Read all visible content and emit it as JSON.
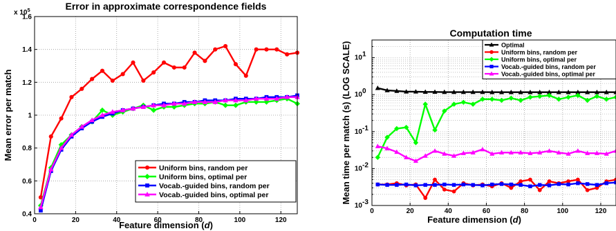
{
  "chart_data": [
    {
      "type": "line",
      "title": "Error in approximate correspondence fields",
      "xlabel": "Feature dimension (d)",
      "xlabel_main": "Feature dimension (",
      "xlabel_var": "d",
      "xlabel_close": ")",
      "ylabel": "Mean error per match",
      "y_multiplier": "x 10",
      "y_multiplier_exp": "5",
      "xlim": [
        0,
        128
      ],
      "ylim": [
        0.4,
        1.6
      ],
      "yscale": "linear",
      "xticks": [
        0,
        20,
        40,
        60,
        80,
        100,
        120
      ],
      "xtick_labels": [
        "0",
        "20",
        "40",
        "60",
        "80",
        "100",
        "120"
      ],
      "yticks": [
        0.4,
        0.6,
        0.8,
        1.0,
        1.2,
        1.4,
        1.6
      ],
      "ytick_labels": [
        "0.4",
        "0.6",
        "0.8",
        "1",
        "1.2",
        "1.4",
        "1.6"
      ],
      "grid": true,
      "legend_position": "bottom-right",
      "x": [
        3,
        8,
        13,
        18,
        23,
        28,
        33,
        38,
        43,
        48,
        53,
        58,
        63,
        68,
        73,
        78,
        83,
        88,
        93,
        98,
        103,
        108,
        113,
        118,
        123,
        128
      ],
      "series": [
        {
          "name": "Uniform bins, random per",
          "color": "#ff0000",
          "marker": "circle",
          "values": [
            0.5,
            0.87,
            0.98,
            1.11,
            1.16,
            1.22,
            1.27,
            1.21,
            1.25,
            1.32,
            1.21,
            1.26,
            1.32,
            1.29,
            1.29,
            1.38,
            1.33,
            1.4,
            1.42,
            1.31,
            1.24,
            1.4,
            1.4,
            1.4,
            1.37,
            1.38
          ]
        },
        {
          "name": "Uniform bins, optimal per",
          "color": "#00ff00",
          "marker": "diamond",
          "values": [
            0.45,
            0.68,
            0.82,
            0.88,
            0.93,
            0.96,
            1.03,
            1.0,
            1.02,
            1.04,
            1.06,
            1.03,
            1.05,
            1.05,
            1.06,
            1.07,
            1.07,
            1.08,
            1.06,
            1.06,
            1.08,
            1.08,
            1.08,
            1.09,
            1.1,
            1.07
          ]
        },
        {
          "name": "Vocab.-guided bins, random per",
          "color": "#0000ff",
          "marker": "square",
          "values": [
            0.42,
            0.66,
            0.79,
            0.87,
            0.92,
            0.96,
            0.99,
            1.01,
            1.03,
            1.04,
            1.05,
            1.06,
            1.07,
            1.07,
            1.08,
            1.08,
            1.09,
            1.09,
            1.09,
            1.1,
            1.1,
            1.1,
            1.11,
            1.11,
            1.11,
            1.12
          ]
        },
        {
          "name": "Vocab.-guided bins, optimal per",
          "color": "#ff00ff",
          "marker": "triangle",
          "values": [
            0.44,
            0.67,
            0.8,
            0.88,
            0.93,
            0.97,
            1.0,
            1.02,
            1.03,
            1.04,
            1.05,
            1.06,
            1.06,
            1.07,
            1.07,
            1.08,
            1.08,
            1.08,
            1.09,
            1.09,
            1.09,
            1.1,
            1.1,
            1.1,
            1.11,
            1.11
          ]
        }
      ]
    },
    {
      "type": "line",
      "title": "Computation time",
      "xlabel": "Feature dimension (d)",
      "xlabel_main": "Feature dimension (",
      "xlabel_var": "d",
      "xlabel_close": ")",
      "ylabel": "Mean time per match (s) (LOG SCALE)",
      "xlim": [
        0,
        128
      ],
      "ylim": [
        0.001,
        30
      ],
      "yscale": "log",
      "xticks": [
        0,
        20,
        40,
        60,
        80,
        100,
        120
      ],
      "xtick_labels": [
        "0",
        "20",
        "40",
        "60",
        "80",
        "100",
        "120"
      ],
      "yticks_exp": [
        -3,
        -2,
        -1,
        0,
        1
      ],
      "grid": true,
      "legend_position": "top-right",
      "x": [
        3,
        8,
        13,
        18,
        23,
        28,
        33,
        38,
        43,
        48,
        53,
        58,
        63,
        68,
        73,
        78,
        83,
        88,
        93,
        98,
        103,
        108,
        113,
        118,
        123,
        128
      ],
      "series": [
        {
          "name": "Optimal",
          "color": "#000000",
          "marker": "triangle",
          "values": [
            1.5,
            1.3,
            1.25,
            1.2,
            1.2,
            1.18,
            1.18,
            1.17,
            1.17,
            1.17,
            1.17,
            1.17,
            1.16,
            1.16,
            1.16,
            1.16,
            1.16,
            1.16,
            1.16,
            1.16,
            1.16,
            1.16,
            1.16,
            1.16,
            1.16,
            1.16
          ]
        },
        {
          "name": "Uniform bins, random per",
          "color": "#ff0000",
          "marker": "circle",
          "values": [
            0.0037,
            0.0037,
            0.004,
            0.0035,
            0.0037,
            0.0016,
            0.005,
            0.0027,
            0.0024,
            0.004,
            0.0035,
            0.0037,
            0.0033,
            0.004,
            0.003,
            0.0045,
            0.005,
            0.0026,
            0.0045,
            0.004,
            0.0045,
            0.005,
            0.0026,
            0.003,
            0.0045,
            0.005
          ]
        },
        {
          "name": "Uniform bins, optimal per",
          "color": "#00ff00",
          "marker": "diamond",
          "values": [
            0.02,
            0.07,
            0.12,
            0.13,
            0.05,
            0.55,
            0.11,
            0.36,
            0.55,
            0.62,
            0.55,
            0.75,
            0.75,
            0.7,
            0.8,
            0.7,
            0.85,
            0.9,
            0.95,
            0.75,
            0.85,
            0.95,
            0.7,
            0.9,
            0.75,
            0.85
          ]
        },
        {
          "name": "Vocab.-guided bins, random per",
          "color": "#0000ff",
          "marker": "square",
          "values": [
            0.0037,
            0.0036,
            0.0036,
            0.0037,
            0.0035,
            0.0036,
            0.0036,
            0.0037,
            0.0036,
            0.0037,
            0.0036,
            0.0035,
            0.0037,
            0.0038,
            0.0037,
            0.0036,
            0.0033,
            0.0036,
            0.0035,
            0.0038,
            0.0037,
            0.004,
            0.0038,
            0.0036,
            0.004,
            0.0042
          ]
        },
        {
          "name": "Vocab.-guided bins, optimal per",
          "color": "#ff00ff",
          "marker": "triangle",
          "values": [
            0.04,
            0.035,
            0.028,
            0.02,
            0.016,
            0.022,
            0.03,
            0.025,
            0.022,
            0.026,
            0.027,
            0.033,
            0.025,
            0.027,
            0.027,
            0.027,
            0.026,
            0.027,
            0.03,
            0.027,
            0.025,
            0.03,
            0.026,
            0.026,
            0.025,
            0.03
          ]
        }
      ]
    }
  ]
}
